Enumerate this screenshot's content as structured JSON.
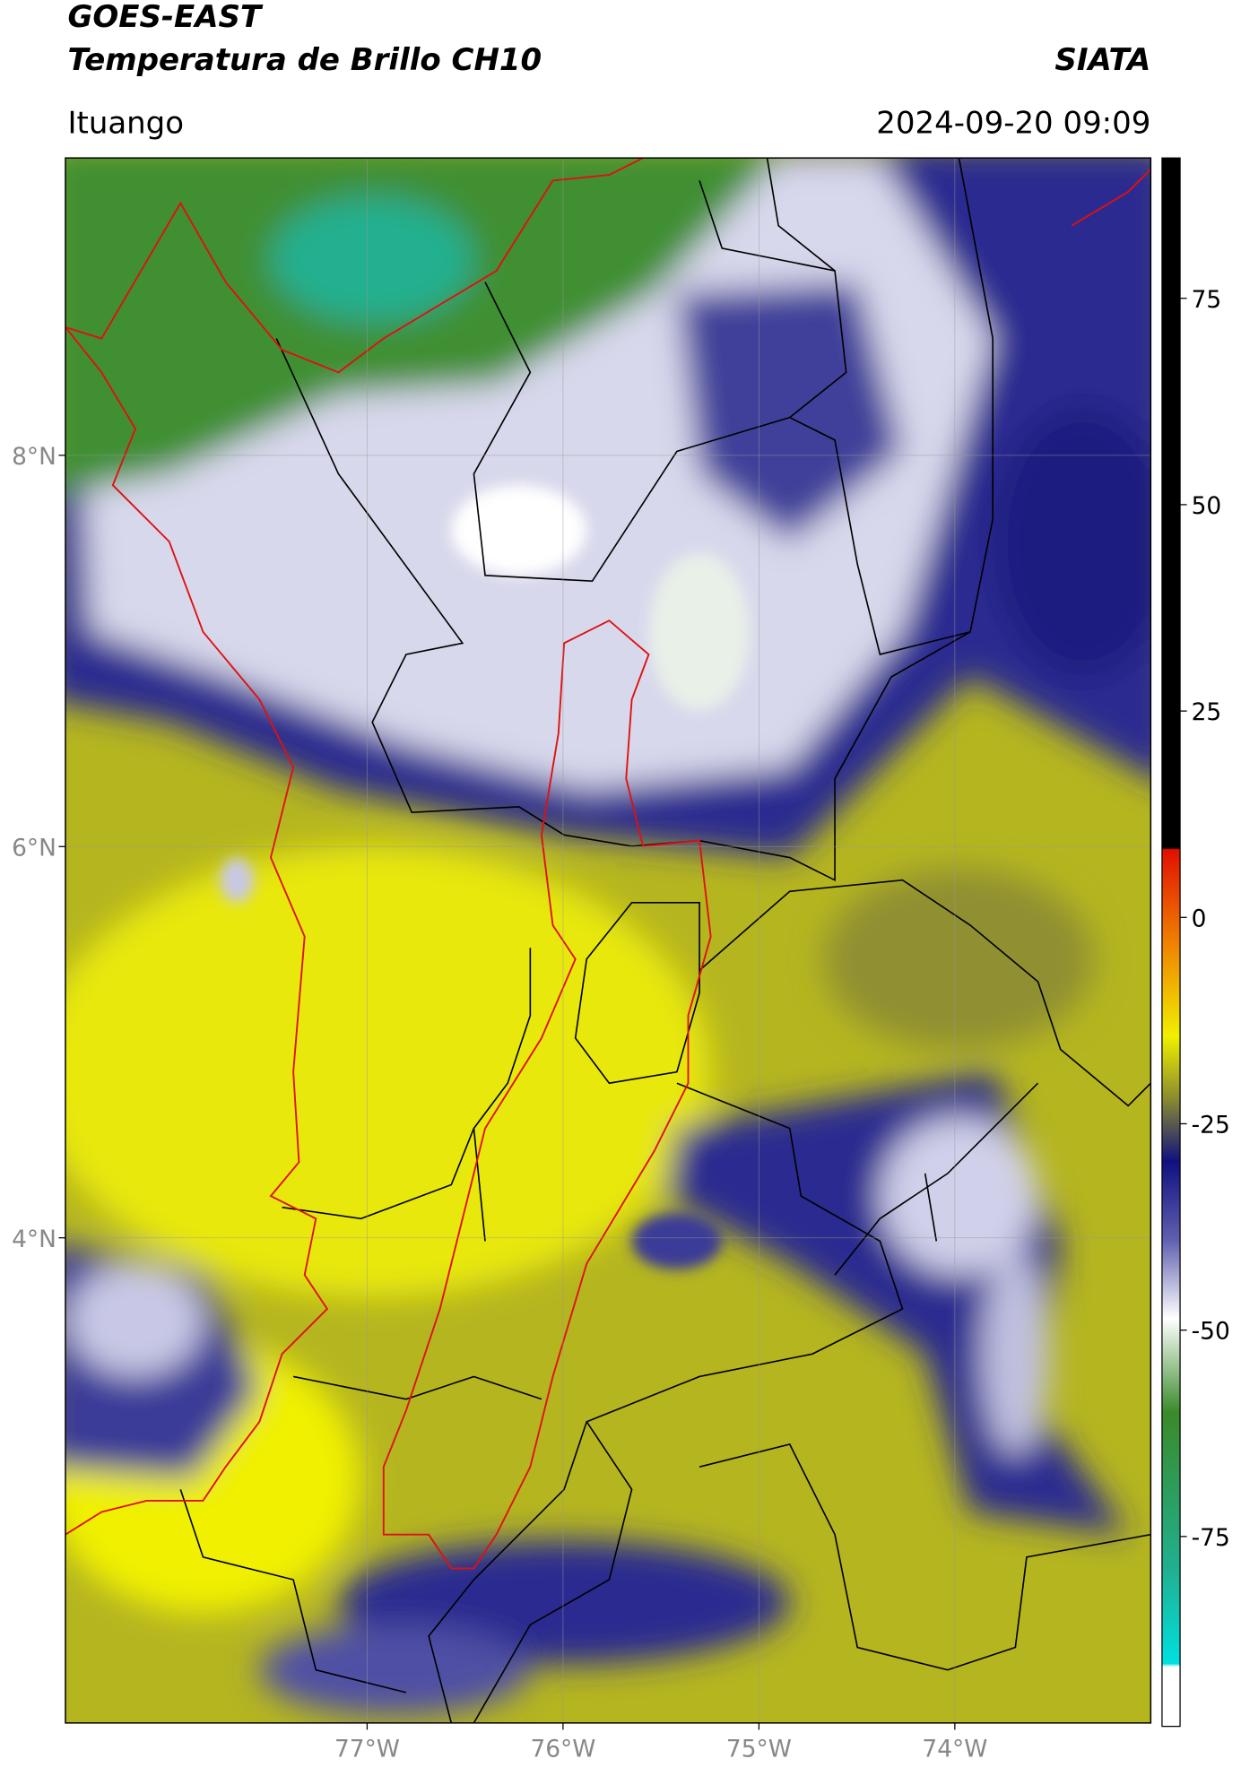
{
  "chart_data": {
    "type": "map",
    "title": [
      "GOES-EAST",
      "Temperatura de Brillo CH10"
    ],
    "source": "SIATA",
    "subtitle": "Ituango",
    "date": "2024-09-20 09:09",
    "xlim": [
      -78.54,
      -73.0
    ],
    "ylim": [
      1.52,
      9.52
    ],
    "xticks": [
      {
        "value": -77,
        "label": "77°W"
      },
      {
        "value": -76,
        "label": "76°W"
      },
      {
        "value": -75,
        "label": "75°W"
      },
      {
        "value": -74,
        "label": "74°W"
      }
    ],
    "yticks": [
      {
        "value": 8,
        "label": "8°N"
      },
      {
        "value": 6,
        "label": "6°N"
      },
      {
        "value": 4,
        "label": "4°N"
      }
    ],
    "grid": true,
    "colorbar": {
      "ylim": [
        -98,
        92
      ],
      "yticks": [
        -75,
        -50,
        -25,
        0,
        25,
        50,
        75
      ]
    }
  }
}
